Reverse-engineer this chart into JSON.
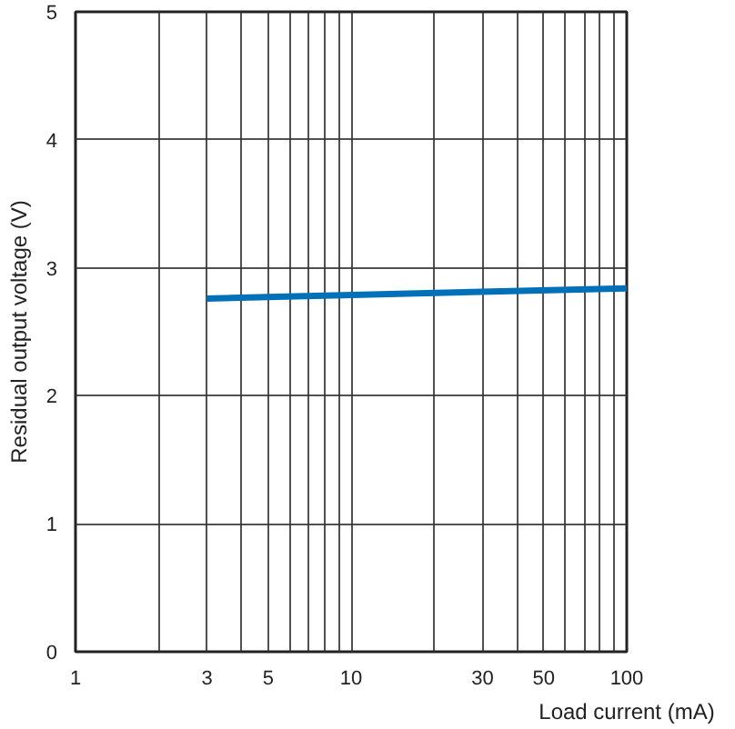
{
  "chart_data": {
    "type": "line",
    "xlabel": "Load current (mA)",
    "ylabel": "Residual output voltage (V)",
    "log": "x",
    "x": [
      3,
      100
    ],
    "series": [
      {
        "color": "#0070b8",
        "values": [
          2.76,
          2.84
        ]
      }
    ],
    "xlim": [
      1,
      100
    ],
    "ylim": [
      0,
      5
    ],
    "xticks": [
      1,
      {
        "value": 2,
        "label": null
      },
      3,
      {
        "value": 4,
        "label": null
      },
      5,
      {
        "value": 6,
        "label": null
      },
      {
        "value": 7,
        "label": null
      },
      {
        "value": 8,
        "label": null
      },
      {
        "value": 9,
        "label": null
      },
      10,
      {
        "value": 20,
        "label": null
      },
      30,
      {
        "value": 40,
        "label": null
      },
      50,
      {
        "value": 60,
        "label": null
      },
      {
        "value": 70,
        "label": null
      },
      {
        "value": 80,
        "label": null
      },
      {
        "value": 90,
        "label": null
      },
      100
    ],
    "yticks": [
      0,
      1,
      2,
      3,
      4,
      5
    ],
    "grid": true
  }
}
